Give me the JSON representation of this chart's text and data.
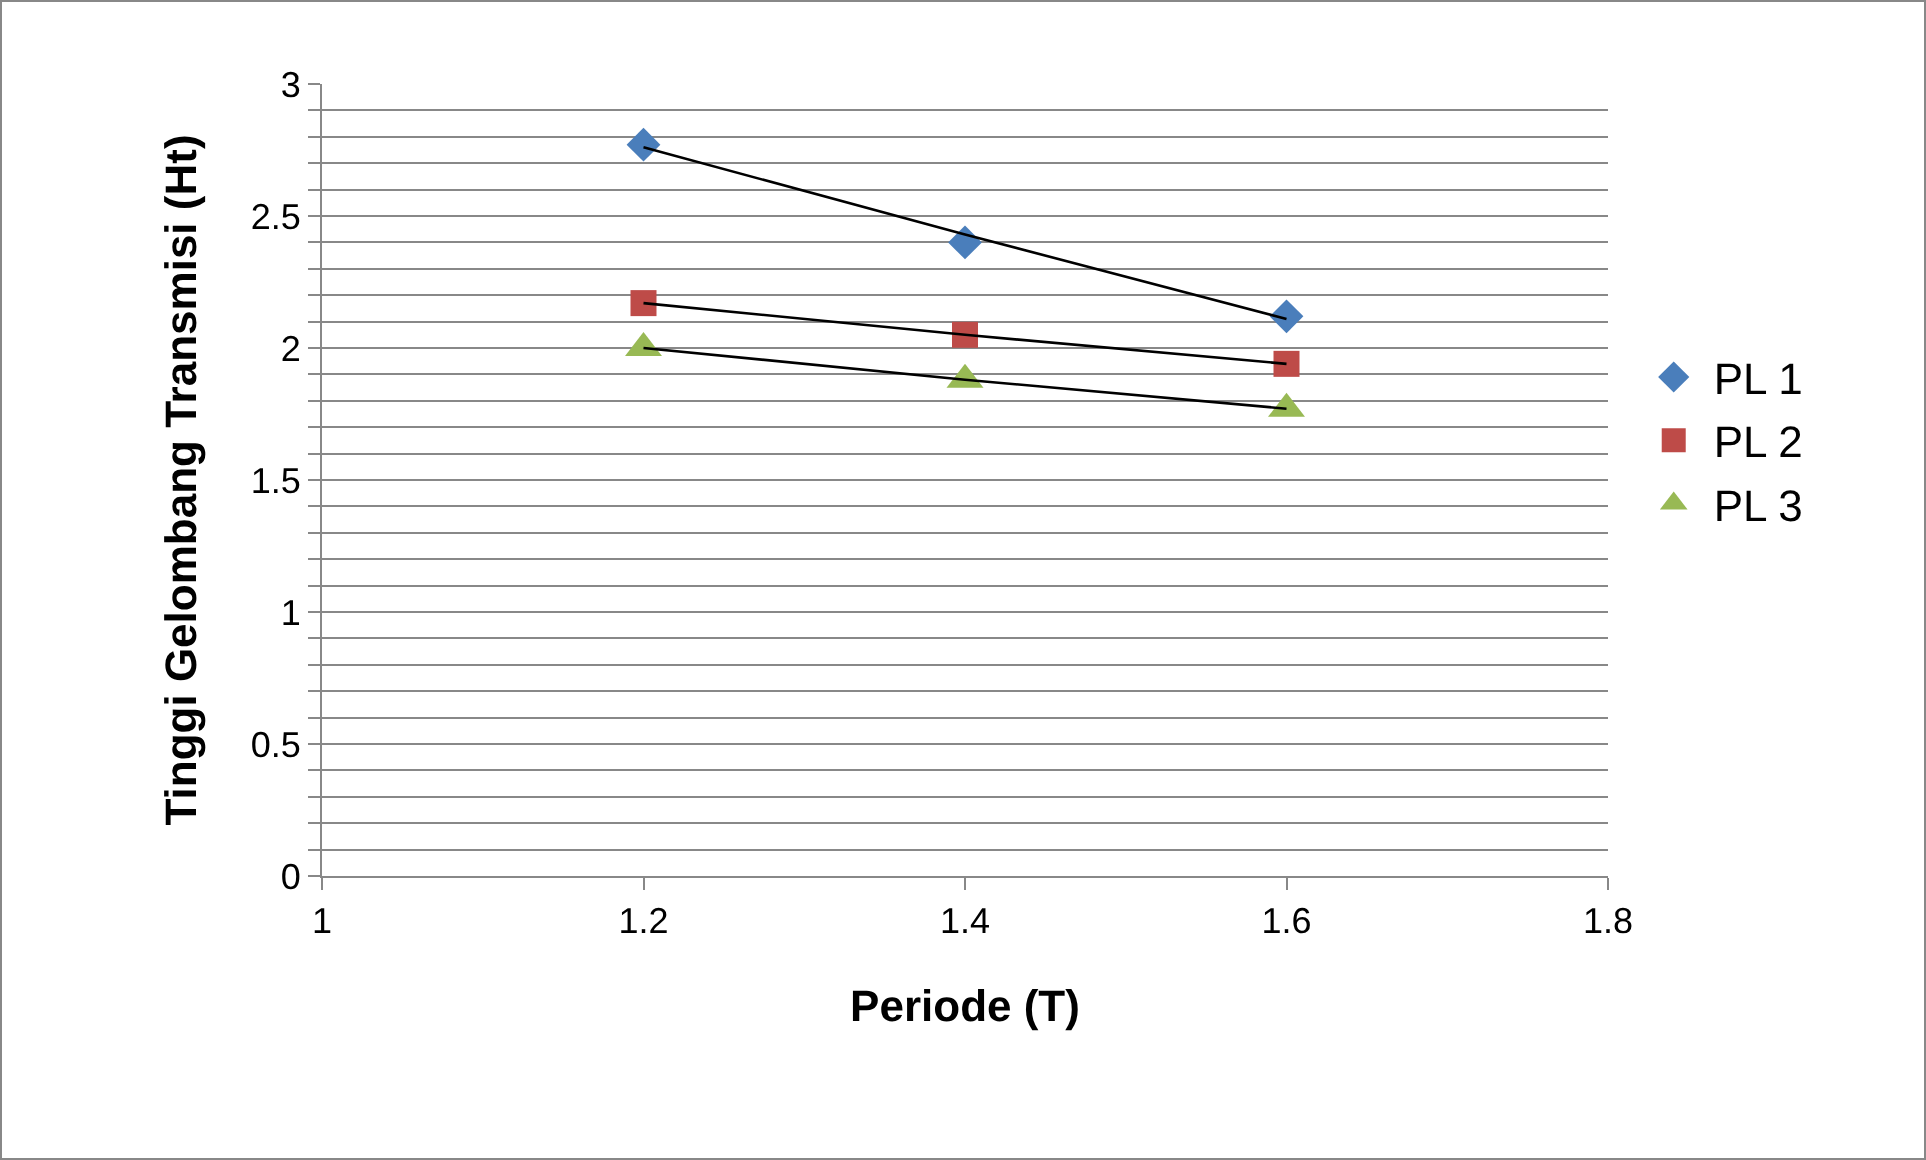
{
  "chart_data": {
    "type": "scatter",
    "xlabel": "Periode (T)",
    "ylabel": "Tinggi Gelombang Transmisi (Ht)",
    "xlim": [
      1,
      1.8
    ],
    "xticks": [
      1,
      1.2,
      1.4,
      1.6,
      1.8
    ],
    "ylim": [
      0,
      3
    ],
    "yticks": [
      0,
      {
        "value": 0.1,
        "label": null
      },
      {
        "value": 0.2,
        "label": null
      },
      {
        "value": 0.3,
        "label": null
      },
      {
        "value": 0.4,
        "label": null
      },
      0.5,
      {
        "value": 0.6,
        "label": null
      },
      {
        "value": 0.7,
        "label": null
      },
      {
        "value": 0.8,
        "label": null
      },
      {
        "value": 0.9,
        "label": null
      },
      1,
      {
        "value": 1.1,
        "label": null
      },
      {
        "value": 1.2,
        "label": null
      },
      {
        "value": 1.3,
        "label": null
      },
      {
        "value": 1.4,
        "label": null
      },
      1.5,
      {
        "value": 1.6,
        "label": null
      },
      {
        "value": 1.7,
        "label": null
      },
      {
        "value": 1.8,
        "label": null
      },
      {
        "value": 1.9,
        "label": null
      },
      2,
      {
        "value": 2.1,
        "label": null
      },
      {
        "value": 2.2,
        "label": null
      },
      {
        "value": 2.3,
        "label": null
      },
      {
        "value": 2.4,
        "label": null
      },
      2.5,
      {
        "value": 2.6,
        "label": null
      },
      {
        "value": 2.7,
        "label": null
      },
      {
        "value": 2.8,
        "label": null
      },
      {
        "value": 2.9,
        "label": null
      },
      3
    ],
    "grid": "y",
    "legend": "right",
    "x": [
      1.2,
      1.4,
      1.6
    ],
    "series": [
      {
        "name": "PL 1",
        "color": "#4a7ebb",
        "marker": "diamond",
        "values": [
          2.77,
          2.4,
          2.12
        ]
      },
      {
        "name": "PL 2",
        "color": "#be4b48",
        "marker": "square",
        "values": [
          2.17,
          2.05,
          1.94
        ]
      },
      {
        "name": "PL 3",
        "color": "#98b954",
        "marker": "triangle",
        "values": [
          2.0,
          1.88,
          1.77
        ]
      },
      {
        "type": "line",
        "color": "#000000",
        "values": [
          2.76,
          2.43,
          2.11
        ]
      },
      {
        "type": "line",
        "color": "#000000",
        "values": [
          2.17,
          2.05,
          1.94
        ]
      },
      {
        "type": "line",
        "color": "#000000",
        "values": [
          2.0,
          1.88,
          1.77
        ]
      }
    ]
  }
}
